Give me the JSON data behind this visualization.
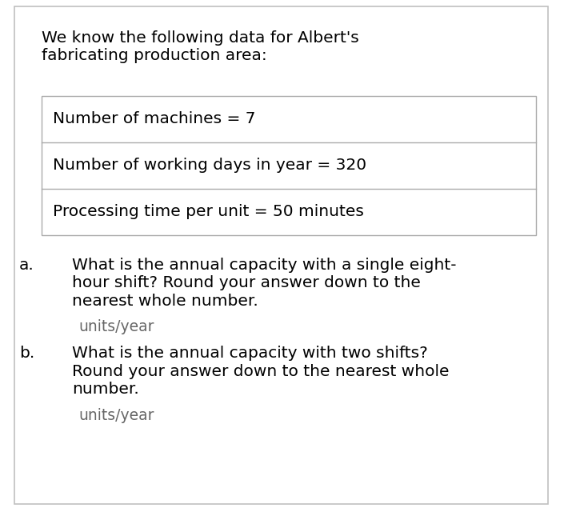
{
  "bg_color": "#ffffff",
  "outer_border_color": "#c0c0c0",
  "table_border_color": "#aaaaaa",
  "intro_text_line1": "We know the following data for Albert's",
  "intro_text_line2": "fabricating production area:",
  "table_rows": [
    "Number of machines = 7",
    "Number of working days in year = 320",
    "Processing time per unit = 50 minutes"
  ],
  "question_a_label": "a.",
  "question_a_text_line1": "What is the annual capacity with a single eight-",
  "question_a_text_line2": "hour shift? Round your answer down to the",
  "question_a_text_line3": "nearest whole number.",
  "question_a_answer": "units/year",
  "question_b_label": "b.",
  "question_b_text_line1": "What is the annual capacity with two shifts?",
  "question_b_text_line2": "Round your answer down to the nearest whole",
  "question_b_text_line3": "number.",
  "question_b_answer": "units/year",
  "font_size": 14.5,
  "answer_font_size": 13.5
}
